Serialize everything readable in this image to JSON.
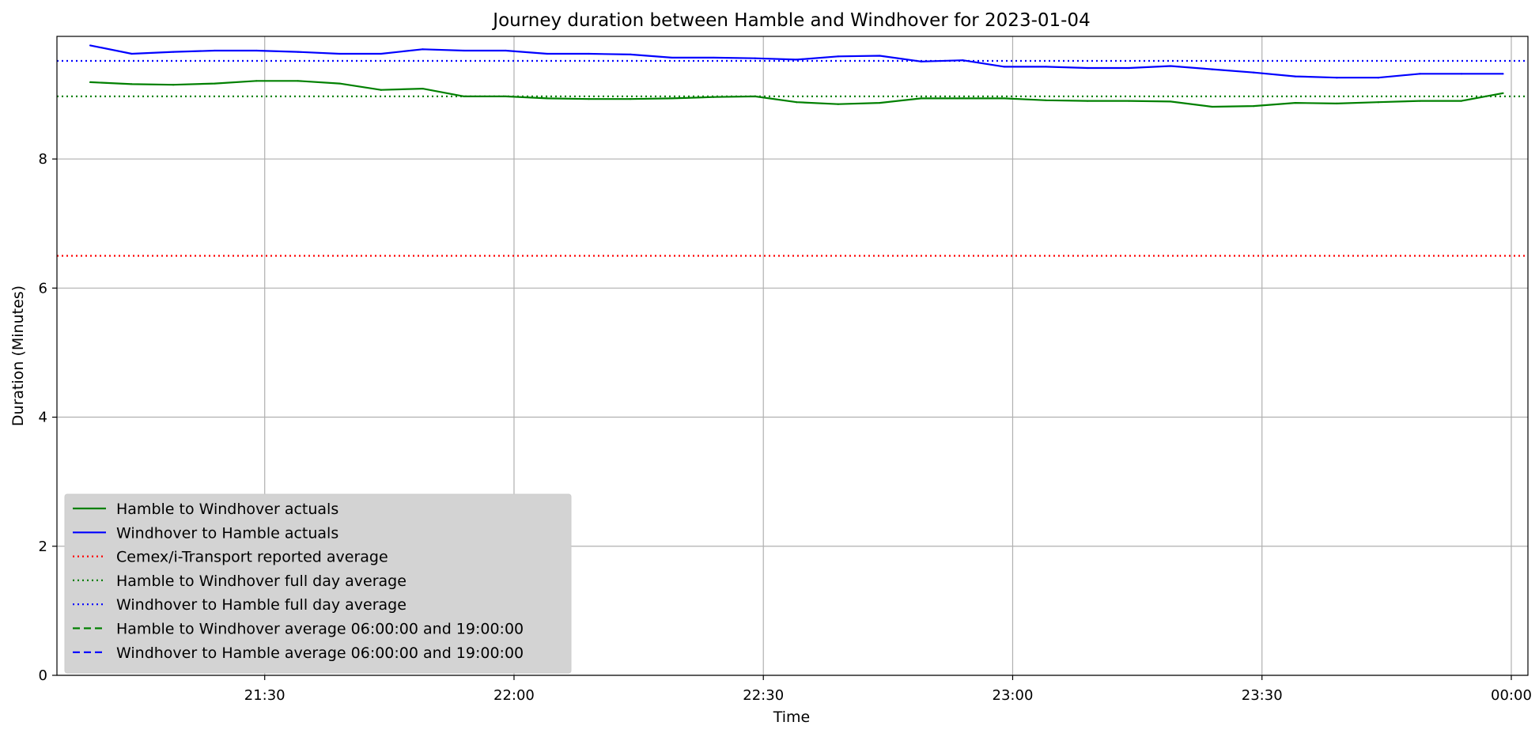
{
  "chart_data": {
    "type": "line",
    "title": "Journey duration between Hamble and Windhover for 2023-01-04",
    "xlabel": "Time",
    "ylabel": "Duration  (Minutes)",
    "xlim": [
      "21:05",
      "00:02"
    ],
    "ylim": [
      0,
      9.9
    ],
    "x_ticks": [
      "21:30",
      "22:00",
      "22:30",
      "23:00",
      "23:30",
      "00:00"
    ],
    "y_ticks": [
      0,
      2,
      4,
      6,
      8
    ],
    "grid": true,
    "legend_position": "lower-left",
    "x": [
      "21:09",
      "21:14",
      "21:19",
      "21:24",
      "21:29",
      "21:34",
      "21:39",
      "21:44",
      "21:49",
      "21:54",
      "21:59",
      "22:04",
      "22:09",
      "22:14",
      "22:19",
      "22:24",
      "22:29",
      "22:34",
      "22:39",
      "22:44",
      "22:49",
      "22:54",
      "22:59",
      "23:04",
      "23:09",
      "23:14",
      "23:19",
      "23:24",
      "23:29",
      "23:34",
      "23:39",
      "23:44",
      "23:49",
      "23:54",
      "23:59"
    ],
    "series": [
      {
        "name": "Hamble to Windhover actuals",
        "color": "#008000",
        "style": "solid",
        "values": [
          9.19,
          9.16,
          9.15,
          9.17,
          9.21,
          9.21,
          9.17,
          9.07,
          9.09,
          8.97,
          8.97,
          8.94,
          8.93,
          8.93,
          8.94,
          8.96,
          8.97,
          8.88,
          8.85,
          8.87,
          8.94,
          8.94,
          8.94,
          8.91,
          8.9,
          8.9,
          8.89,
          8.81,
          8.82,
          8.87,
          8.86,
          8.88,
          8.9,
          8.9,
          9.02
        ]
      },
      {
        "name": "Windhover to Hamble actuals",
        "color": "#0000ff",
        "style": "solid",
        "values": [
          9.76,
          9.63,
          9.66,
          9.68,
          9.68,
          9.66,
          9.63,
          9.63,
          9.7,
          9.68,
          9.68,
          9.63,
          9.63,
          9.62,
          9.57,
          9.57,
          9.56,
          9.54,
          9.59,
          9.6,
          9.51,
          9.53,
          9.43,
          9.43,
          9.41,
          9.41,
          9.44,
          9.39,
          9.34,
          9.28,
          9.26,
          9.26,
          9.32,
          9.32,
          9.32
        ]
      },
      {
        "name": "Cemex/i-Transport reported average",
        "color": "#ff0000",
        "style": "dotted",
        "constant": 6.5
      },
      {
        "name": "Hamble to Windhover full day average",
        "color": "#008000",
        "style": "dotted",
        "constant": 8.97
      },
      {
        "name": "Windhover to Hamble full day average",
        "color": "#0000ff",
        "style": "dotted",
        "constant": 9.52
      },
      {
        "name": "Hamble to Windhover average 06:00:00 and 19:00:00",
        "color": "#008000",
        "style": "dashed"
      },
      {
        "name": "Windhover to Hamble average 06:00:00 and 19:00:00",
        "color": "#0000ff",
        "style": "dashed"
      }
    ]
  }
}
